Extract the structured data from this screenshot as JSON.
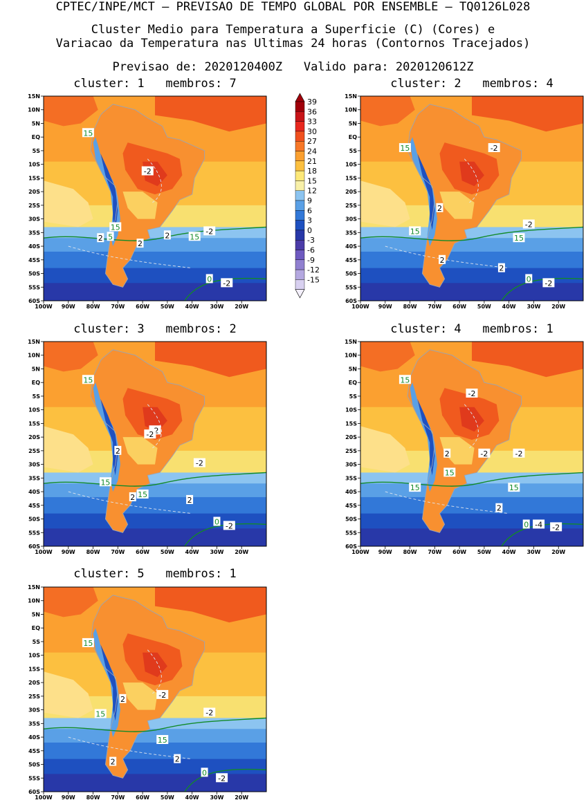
{
  "header": {
    "line1": "CPTEC/INPE/MCT – PREVISAO DE TEMPO GLOBAL POR ENSEMBLE – TQ0126L028",
    "line2": "Cluster Medio para Temperatura a Superficie (C) (Cores) e",
    "line3": "Variacao da Temperatura nas Ultimas 24 horas (Contornos Tracejados)",
    "line4": "Previsao de: 2020120400Z   Valido para: 2020120612Z"
  },
  "axes": {
    "lat_labels": [
      "15N",
      "10N",
      "5N",
      "EQ",
      "5S",
      "10S",
      "15S",
      "20S",
      "25S",
      "30S",
      "35S",
      "40S",
      "45S",
      "50S",
      "55S",
      "60S"
    ],
    "lon_labels": [
      "100W",
      "90W",
      "80W",
      "70W",
      "60W",
      "50W",
      "40W",
      "30W",
      "20W"
    ]
  },
  "colorbar": {
    "labels": [
      "39",
      "36",
      "33",
      "30",
      "27",
      "24",
      "21",
      "18",
      "15",
      "12",
      "9",
      "6",
      "3",
      "0",
      "-3",
      "-6",
      "-9",
      "-12",
      "-15"
    ],
    "colors": [
      "#a0000a",
      "#c81418",
      "#e8281e",
      "#f0501e",
      "#f87828",
      "#fba030",
      "#fcc040",
      "#fde878",
      "#f8f0a8",
      "#8cc4f0",
      "#5aa0e6",
      "#3278d8",
      "#1e50c0",
      "#2838a8",
      "#4c3ca8",
      "#6e5ac0",
      "#9080d0",
      "#b4a8e0",
      "#d8d0f0"
    ]
  },
  "panels": [
    {
      "title": "cluster: 1   membros: 7",
      "labels": [
        {
          "t": "15",
          "c": "g",
          "x": -82,
          "y": 1.5
        },
        {
          "t": "-2",
          "c": "w",
          "x": -58,
          "y": -12.5
        },
        {
          "t": "15",
          "c": "g",
          "x": -71,
          "y": -33
        },
        {
          "t": "2",
          "c": "w",
          "x": -77,
          "y": -37
        },
        {
          "t": "5",
          "c": "g",
          "x": -73,
          "y": -36.5
        },
        {
          "t": "2",
          "c": "w",
          "x": -61,
          "y": -39
        },
        {
          "t": "2",
          "c": "w",
          "x": -50,
          "y": -36
        },
        {
          "t": "15",
          "c": "g",
          "x": -39,
          "y": -36.5
        },
        {
          "t": "-2",
          "c": "w",
          "x": -33,
          "y": -34.5
        },
        {
          "t": "0",
          "c": "g",
          "x": -33,
          "y": -52
        },
        {
          "t": "-2",
          "c": "w",
          "x": -26,
          "y": -53.5
        }
      ]
    },
    {
      "title": "cluster: 2   membros: 4",
      "labels": [
        {
          "t": "15",
          "c": "g",
          "x": -82,
          "y": -4
        },
        {
          "t": "-2",
          "c": "w",
          "x": -46,
          "y": -4
        },
        {
          "t": "2",
          "c": "w",
          "x": -68,
          "y": -26
        },
        {
          "t": "15",
          "c": "g",
          "x": -78,
          "y": -34.5
        },
        {
          "t": "-2",
          "c": "w",
          "x": -32,
          "y": -32
        },
        {
          "t": "15",
          "c": "g",
          "x": -36,
          "y": -37
        },
        {
          "t": "2",
          "c": "w",
          "x": -67,
          "y": -45
        },
        {
          "t": "2",
          "c": "w",
          "x": -43,
          "y": -48
        },
        {
          "t": "0",
          "c": "g",
          "x": -32,
          "y": -52
        },
        {
          "t": "-2",
          "c": "w",
          "x": -24,
          "y": -53.5
        }
      ]
    },
    {
      "title": "cluster: 3   membros: 2",
      "labels": [
        {
          "t": "15",
          "c": "g",
          "x": -82,
          "y": 1
        },
        {
          "t": "-2",
          "c": "w",
          "x": -55,
          "y": -17.5
        },
        {
          "t": "-2",
          "c": "w",
          "x": -57,
          "y": -19
        },
        {
          "t": "2",
          "c": "w",
          "x": -70,
          "y": -25
        },
        {
          "t": "-2",
          "c": "w",
          "x": -37,
          "y": -29.5
        },
        {
          "t": "15",
          "c": "g",
          "x": -75,
          "y": -36.5
        },
        {
          "t": "15",
          "c": "g",
          "x": -60,
          "y": -41
        },
        {
          "t": "2",
          "c": "w",
          "x": -64,
          "y": -42
        },
        {
          "t": "2",
          "c": "w",
          "x": -41,
          "y": -43
        },
        {
          "t": "0",
          "c": "g",
          "x": -30,
          "y": -51
        },
        {
          "t": "-2",
          "c": "w",
          "x": -25,
          "y": -52.5
        }
      ]
    },
    {
      "title": "cluster: 4   membros: 1",
      "labels": [
        {
          "t": "15",
          "c": "g",
          "x": -82,
          "y": 1
        },
        {
          "t": "-2",
          "c": "w",
          "x": -55,
          "y": -4
        },
        {
          "t": "2",
          "c": "w",
          "x": -65,
          "y": -26
        },
        {
          "t": "-2",
          "c": "w",
          "x": -50,
          "y": -26
        },
        {
          "t": "-2",
          "c": "w",
          "x": -36,
          "y": -26
        },
        {
          "t": "15",
          "c": "g",
          "x": -64,
          "y": -33
        },
        {
          "t": "15",
          "c": "g",
          "x": -78,
          "y": -38.5
        },
        {
          "t": "15",
          "c": "g",
          "x": -38,
          "y": -38.5
        },
        {
          "t": "2",
          "c": "w",
          "x": -44,
          "y": -46
        },
        {
          "t": "0",
          "c": "g",
          "x": -33,
          "y": -52
        },
        {
          "t": "-4",
          "c": "w",
          "x": -28,
          "y": -52
        },
        {
          "t": "-2",
          "c": "w",
          "x": -21,
          "y": -53
        }
      ]
    },
    {
      "title": "cluster: 5   membros: 1",
      "labels": [
        {
          "t": "15",
          "c": "g",
          "x": -82,
          "y": -5.5
        },
        {
          "t": "-2",
          "c": "w",
          "x": -52,
          "y": -24.5
        },
        {
          "t": "2",
          "c": "w",
          "x": -68,
          "y": -26
        },
        {
          "t": "-2",
          "c": "w",
          "x": -33,
          "y": -31
        },
        {
          "t": "15",
          "c": "g",
          "x": -77,
          "y": -31.5
        },
        {
          "t": "15",
          "c": "g",
          "x": -52,
          "y": -41
        },
        {
          "t": "2",
          "c": "w",
          "x": -72,
          "y": -49
        },
        {
          "t": "2",
          "c": "w",
          "x": -46,
          "y": -48
        },
        {
          "t": "0",
          "c": "g",
          "x": -35,
          "y": -53
        },
        {
          "t": "-2",
          "c": "w",
          "x": -28,
          "y": -55
        }
      ]
    }
  ]
}
